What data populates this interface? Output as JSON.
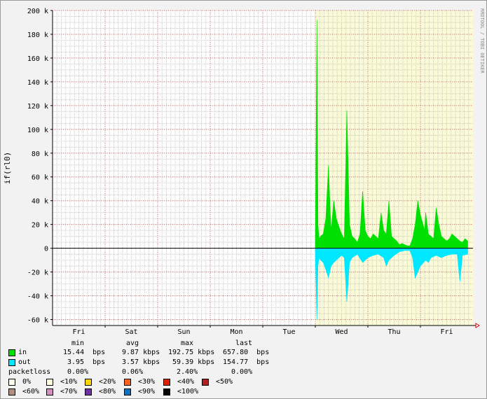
{
  "chart_data": {
    "type": "area",
    "ylabel": "if(rl0)",
    "watermark": "RRDTOOL / TOBI OETIKER",
    "ylim": [
      -65000,
      200000
    ],
    "yticks": [
      {
        "v": 200000,
        "label": "200 k"
      },
      {
        "v": 180000,
        "label": "180 k"
      },
      {
        "v": 160000,
        "label": "160 k"
      },
      {
        "v": 140000,
        "label": "140 k"
      },
      {
        "v": 120000,
        "label": "120 k"
      },
      {
        "v": 100000,
        "label": "100 k"
      },
      {
        "v": 80000,
        "label": "80 k"
      },
      {
        "v": 60000,
        "label": "60 k"
      },
      {
        "v": 40000,
        "label": "40 k"
      },
      {
        "v": 20000,
        "label": "20 k"
      },
      {
        "v": 0,
        "label": "0"
      },
      {
        "v": -20000,
        "label": "-20 k"
      },
      {
        "v": -40000,
        "label": "-40 k"
      },
      {
        "v": -60000,
        "label": "-60 k"
      }
    ],
    "xlim": [
      0,
      8
    ],
    "x_unit": "days",
    "day_labels": [
      "Fri",
      "Sat",
      "Sun",
      "Mon",
      "Tue",
      "Wed",
      "Thu",
      "Fri"
    ],
    "data_start_day": 5.0,
    "series": [
      {
        "name": "in",
        "color": "#00e000",
        "x": [
          5.0,
          5.03,
          5.05,
          5.07,
          5.1,
          5.15,
          5.2,
          5.25,
          5.28,
          5.3,
          5.35,
          5.4,
          5.45,
          5.5,
          5.55,
          5.6,
          5.65,
          5.7,
          5.75,
          5.8,
          5.85,
          5.9,
          5.95,
          6.0,
          6.05,
          6.1,
          6.15,
          6.2,
          6.25,
          6.3,
          6.35,
          6.4,
          6.45,
          6.5,
          6.55,
          6.6,
          6.65,
          6.7,
          6.75,
          6.8,
          6.85,
          6.9,
          6.95,
          7.0,
          7.05,
          7.08,
          7.1,
          7.15,
          7.2,
          7.25,
          7.3,
          7.35,
          7.4,
          7.45,
          7.5,
          7.55,
          7.6,
          7.65,
          7.7,
          7.75,
          7.8,
          7.85,
          7.9
        ],
        "y": [
          5000,
          192000,
          20000,
          8000,
          10000,
          12000,
          25000,
          70000,
          35000,
          15000,
          40000,
          25000,
          18000,
          12000,
          8000,
          116000,
          20000,
          10000,
          8000,
          5000,
          12000,
          48000,
          15000,
          10000,
          8000,
          12000,
          10000,
          8000,
          30000,
          15000,
          12000,
          40000,
          10000,
          8000,
          6000,
          3000,
          4000,
          3000,
          2000,
          2000,
          8000,
          20000,
          40000,
          28000,
          20000,
          15000,
          30000,
          12000,
          10000,
          8000,
          34000,
          20000,
          10000,
          8000,
          6000,
          8000,
          12000,
          10000,
          8000,
          6000,
          5000,
          8000,
          6000
        ]
      },
      {
        "name": "out",
        "color": "#00e8ff",
        "x": [
          5.0,
          5.03,
          5.05,
          5.07,
          5.1,
          5.15,
          5.2,
          5.25,
          5.3,
          5.35,
          5.4,
          5.45,
          5.5,
          5.55,
          5.6,
          5.65,
          5.7,
          5.8,
          5.9,
          6.0,
          6.1,
          6.2,
          6.3,
          6.35,
          6.4,
          6.5,
          6.6,
          6.7,
          6.8,
          6.85,
          6.9,
          7.0,
          7.1,
          7.15,
          7.2,
          7.3,
          7.4,
          7.5,
          7.6,
          7.7,
          7.75,
          7.8,
          7.9
        ],
        "y": [
          -5000,
          -60000,
          -15000,
          -8000,
          -10000,
          -12000,
          -18000,
          -25000,
          -15000,
          -12000,
          -10000,
          -8000,
          -6000,
          -8000,
          -45000,
          -12000,
          -8000,
          -5000,
          -12000,
          -8000,
          -6000,
          -5000,
          -8000,
          -15000,
          -10000,
          -6000,
          -3000,
          -2000,
          -2000,
          -8000,
          -25000,
          -15000,
          -10000,
          -12000,
          -8000,
          -6000,
          -8000,
          -6000,
          -5000,
          -5000,
          -28000,
          -6000,
          -5000
        ]
      }
    ]
  },
  "legend": {
    "headers": [
      "min",
      "avg",
      "max",
      "last"
    ],
    "rows": [
      {
        "name": "in",
        "color": "#00e000",
        "values": [
          "15.44  bps",
          "9.87 kbps",
          "192.75 kbps",
          "657.80  bps"
        ]
      },
      {
        "name": "out",
        "color": "#00e8ff",
        "values": [
          "3.95  bps",
          "3.57 kbps",
          "59.39 kbps",
          "154.77  bps"
        ]
      },
      {
        "name": "packetloss",
        "color": "",
        "values": [
          "0.00%",
          "0.06%",
          "2.40%",
          "0.00%"
        ]
      }
    ],
    "loss_scale": [
      {
        "label": "0%",
        "color": "#fffff0"
      },
      {
        "label": "<10%",
        "color": "#ffffe0"
      },
      {
        "label": "<20%",
        "color": "#ffd700"
      },
      {
        "label": "<30%",
        "color": "#ff6020"
      },
      {
        "label": "<40%",
        "color": "#dd2000"
      },
      {
        "label": "<50%",
        "color": "#b02020"
      },
      {
        "label": "<60%",
        "color": "#b09080"
      },
      {
        "label": "<70%",
        "color": "#d090c0"
      },
      {
        "label": "<80%",
        "color": "#7030a0"
      },
      {
        "label": "<90%",
        "color": "#1070c0"
      },
      {
        "label": "<100%",
        "color": "#000000"
      }
    ],
    "highlight_band_color": "#fbfbd8"
  }
}
